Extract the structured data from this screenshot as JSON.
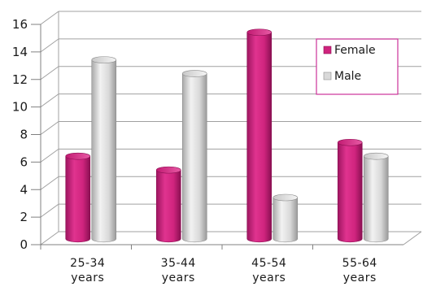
{
  "chart_data": {
    "type": "bar",
    "categories": [
      [
        "25-34",
        "years"
      ],
      [
        "35-44",
        "years"
      ],
      [
        "45-54",
        "years"
      ],
      [
        "55-64",
        "years"
      ]
    ],
    "series": [
      {
        "name": "Female",
        "values": [
          6,
          5,
          15,
          7
        ],
        "color": "#d0247e"
      },
      {
        "name": "Male",
        "values": [
          13,
          12,
          3,
          6
        ],
        "color": "#d9d9d9"
      }
    ],
    "ylim": [
      0,
      16
    ],
    "yticks": [
      0,
      2,
      4,
      6,
      8,
      10,
      12,
      14,
      16
    ],
    "grid": true,
    "legend_position": "top-right",
    "legend_border_color": "#cc3399"
  }
}
